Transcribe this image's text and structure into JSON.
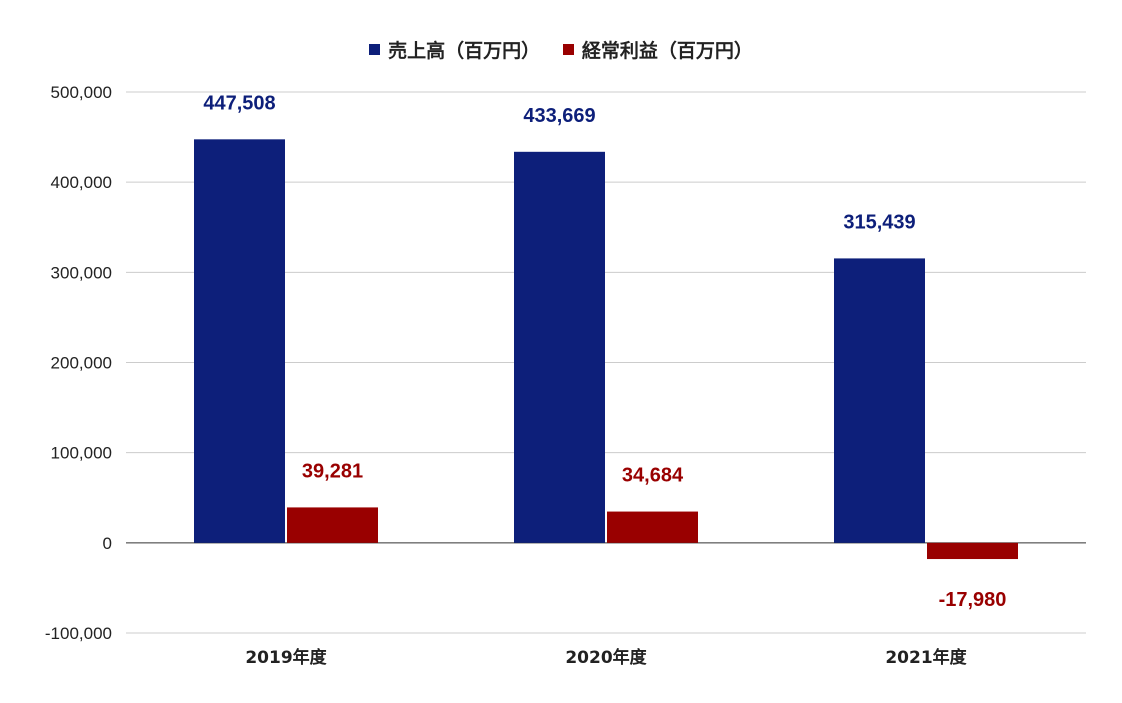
{
  "chart_data": {
    "type": "bar",
    "categories": [
      "2019年度",
      "2020年度",
      "2021年度"
    ],
    "series": [
      {
        "name": "売上高（百万円）",
        "color": "#0d1f7a",
        "values": [
          447508,
          433669,
          315439
        ],
        "labels": [
          "447,508",
          "433,669",
          "315,439"
        ]
      },
      {
        "name": "経常利益（百万円）",
        "color": "#990000",
        "values": [
          39281,
          34684,
          -17980
        ],
        "labels": [
          "39,281",
          "34,684",
          "-17,980"
        ]
      }
    ],
    "ylim": [
      -100000,
      500000
    ],
    "yticks": [
      500000,
      400000,
      300000,
      200000,
      100000,
      0,
      -100000
    ],
    "ytick_labels": [
      "500,000",
      "400,000",
      "300,000",
      "200,000",
      "100,000",
      "0",
      "-100,000"
    ],
    "grid": true,
    "legend_position": "top"
  }
}
